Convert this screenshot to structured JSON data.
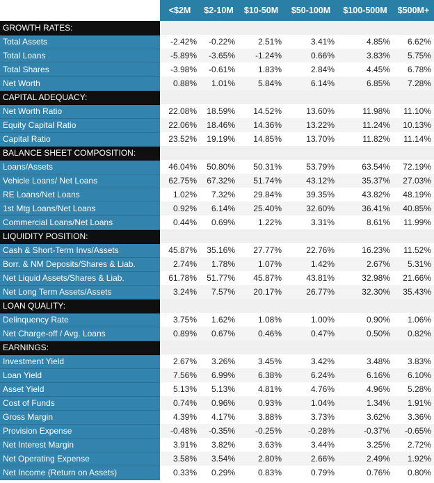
{
  "columns": [
    "<$2M",
    "$2-10M",
    "$10-50M",
    "$50-100M",
    "$100-500M",
    "$500M+"
  ],
  "sections": [
    {
      "title": "GROWTH RATES:",
      "rows": [
        {
          "label": "Total Assets",
          "values": [
            "-2.42%",
            "-0.22%",
            "2.51%",
            "3.41%",
            "4.85%",
            "6.62%"
          ]
        },
        {
          "label": "Total Loans",
          "values": [
            "-5.89%",
            "-3.65%",
            "-1.24%",
            "0.66%",
            "3.83%",
            "5.75%"
          ]
        },
        {
          "label": "Total Shares",
          "values": [
            "-3.98%",
            "-0.61%",
            "1.83%",
            "2.84%",
            "4.45%",
            "6.78%"
          ]
        },
        {
          "label": "Net Worth",
          "values": [
            "0.88%",
            "1.01%",
            "5.84%",
            "6.14%",
            "6.85%",
            "7.28%"
          ]
        }
      ]
    },
    {
      "title": "CAPITAL ADEQUACY:",
      "rows": [
        {
          "label": "Net Worth Ratio",
          "values": [
            "22.08%",
            "18.59%",
            "14.52%",
            "13.60%",
            "11.98%",
            "11.10%"
          ]
        },
        {
          "label": "Equity Capital Ratio",
          "values": [
            "22.06%",
            "18.46%",
            "14.36%",
            "13.22%",
            "11.24%",
            "10.13%"
          ]
        },
        {
          "label": "Capital Ratio",
          "values": [
            "23.52%",
            "19.19%",
            "14.85%",
            "13.70%",
            "11.82%",
            "11.14%"
          ]
        }
      ]
    },
    {
      "title": "BALANCE SHEET COMPOSITION:",
      "rows": [
        {
          "label": "Loans/Assets",
          "values": [
            "46.04%",
            "50.80%",
            "50.31%",
            "53.79%",
            "63.54%",
            "72.19%"
          ]
        },
        {
          "label": "Vehicle Loans/ Net Loans",
          "values": [
            "62.75%",
            "67.32%",
            "51.74%",
            "43.12%",
            "35.37%",
            "27.03%"
          ]
        },
        {
          "label": "RE Loans/Net Loans",
          "values": [
            "1.02%",
            "7.32%",
            "29.84%",
            "39.35%",
            "43.82%",
            "48.19%"
          ]
        },
        {
          "label": "1st Mtg Loans/Net Loans",
          "values": [
            "0.92%",
            "6.14%",
            "25.40%",
            "32.60%",
            "36.41%",
            "40.85%"
          ]
        },
        {
          "label": "Commercial Loans/Net Loans",
          "values": [
            "0.44%",
            "0.69%",
            "1.22%",
            "3.31%",
            "8.61%",
            "11.99%"
          ]
        }
      ]
    },
    {
      "title": "LIQUIDITY POSITION:",
      "rows": [
        {
          "label": "Cash & Short-Term Invs/Assets",
          "values": [
            "45.87%",
            "35.16%",
            "27.77%",
            "22.76%",
            "16.23%",
            "11.52%"
          ]
        },
        {
          "label": "Borr. & NM Deposits/Shares & Liab.",
          "values": [
            "2.74%",
            "1.78%",
            "1.07%",
            "1.42%",
            "2.67%",
            "5.31%"
          ]
        },
        {
          "label": "Net Liquid Assets/Shares & Liab.",
          "values": [
            "61.78%",
            "51.77%",
            "45.87%",
            "43.81%",
            "32.98%",
            "21.66%"
          ]
        },
        {
          "label": "Net Long Term Assets/Assets",
          "values": [
            "3.24%",
            "7.57%",
            "20.17%",
            "26.77%",
            "32.30%",
            "35.43%"
          ]
        }
      ]
    },
    {
      "title": "LOAN QUALITY:",
      "rows": [
        {
          "label": "Delinquency Rate",
          "values": [
            "3.75%",
            "1.62%",
            "1.08%",
            "1.00%",
            "0.90%",
            "1.06%"
          ]
        },
        {
          "label": "Net Charge-off / Avg. Loans",
          "values": [
            "0.89%",
            "0.67%",
            "0.46%",
            "0.47%",
            "0.50%",
            "0.82%"
          ]
        }
      ]
    },
    {
      "title": "EARNINGS:",
      "rows": [
        {
          "label": "Investment Yield",
          "values": [
            "2.67%",
            "3.26%",
            "3.45%",
            "3.42%",
            "3.48%",
            "3.83%"
          ]
        },
        {
          "label": "Loan Yield",
          "values": [
            "7.56%",
            "6.99%",
            "6.38%",
            "6.24%",
            "6.16%",
            "6.10%"
          ]
        },
        {
          "label": "Asset Yield",
          "values": [
            "5.13%",
            "5.13%",
            "4.81%",
            "4.76%",
            "4.96%",
            "5.28%"
          ]
        },
        {
          "label": "Cost of Funds",
          "values": [
            "0.74%",
            "0.96%",
            "0.93%",
            "1.04%",
            "1.34%",
            "1.91%"
          ]
        },
        {
          "label": "Gross Margin",
          "values": [
            "4.39%",
            "4.17%",
            "3.88%",
            "3.73%",
            "3.62%",
            "3.36%"
          ]
        },
        {
          "label": "Provision Expense",
          "values": [
            "-0.48%",
            "-0.35%",
            "-0.25%",
            "-0.28%",
            "-0.37%",
            "-0.65%"
          ]
        },
        {
          "label": "Net Interest Margin",
          "values": [
            "3.91%",
            "3.82%",
            "3.63%",
            "3.44%",
            "3.25%",
            "2.72%"
          ]
        },
        {
          "label": "Net Operating Expense",
          "values": [
            "3.58%",
            "3.54%",
            "2.80%",
            "2.66%",
            "2.49%",
            "1.92%"
          ]
        },
        {
          "label": "Net Income (Return on Assets)",
          "values": [
            "0.33%",
            "0.29%",
            "0.83%",
            "0.79%",
            "0.76%",
            "0.80%"
          ]
        }
      ]
    }
  ]
}
